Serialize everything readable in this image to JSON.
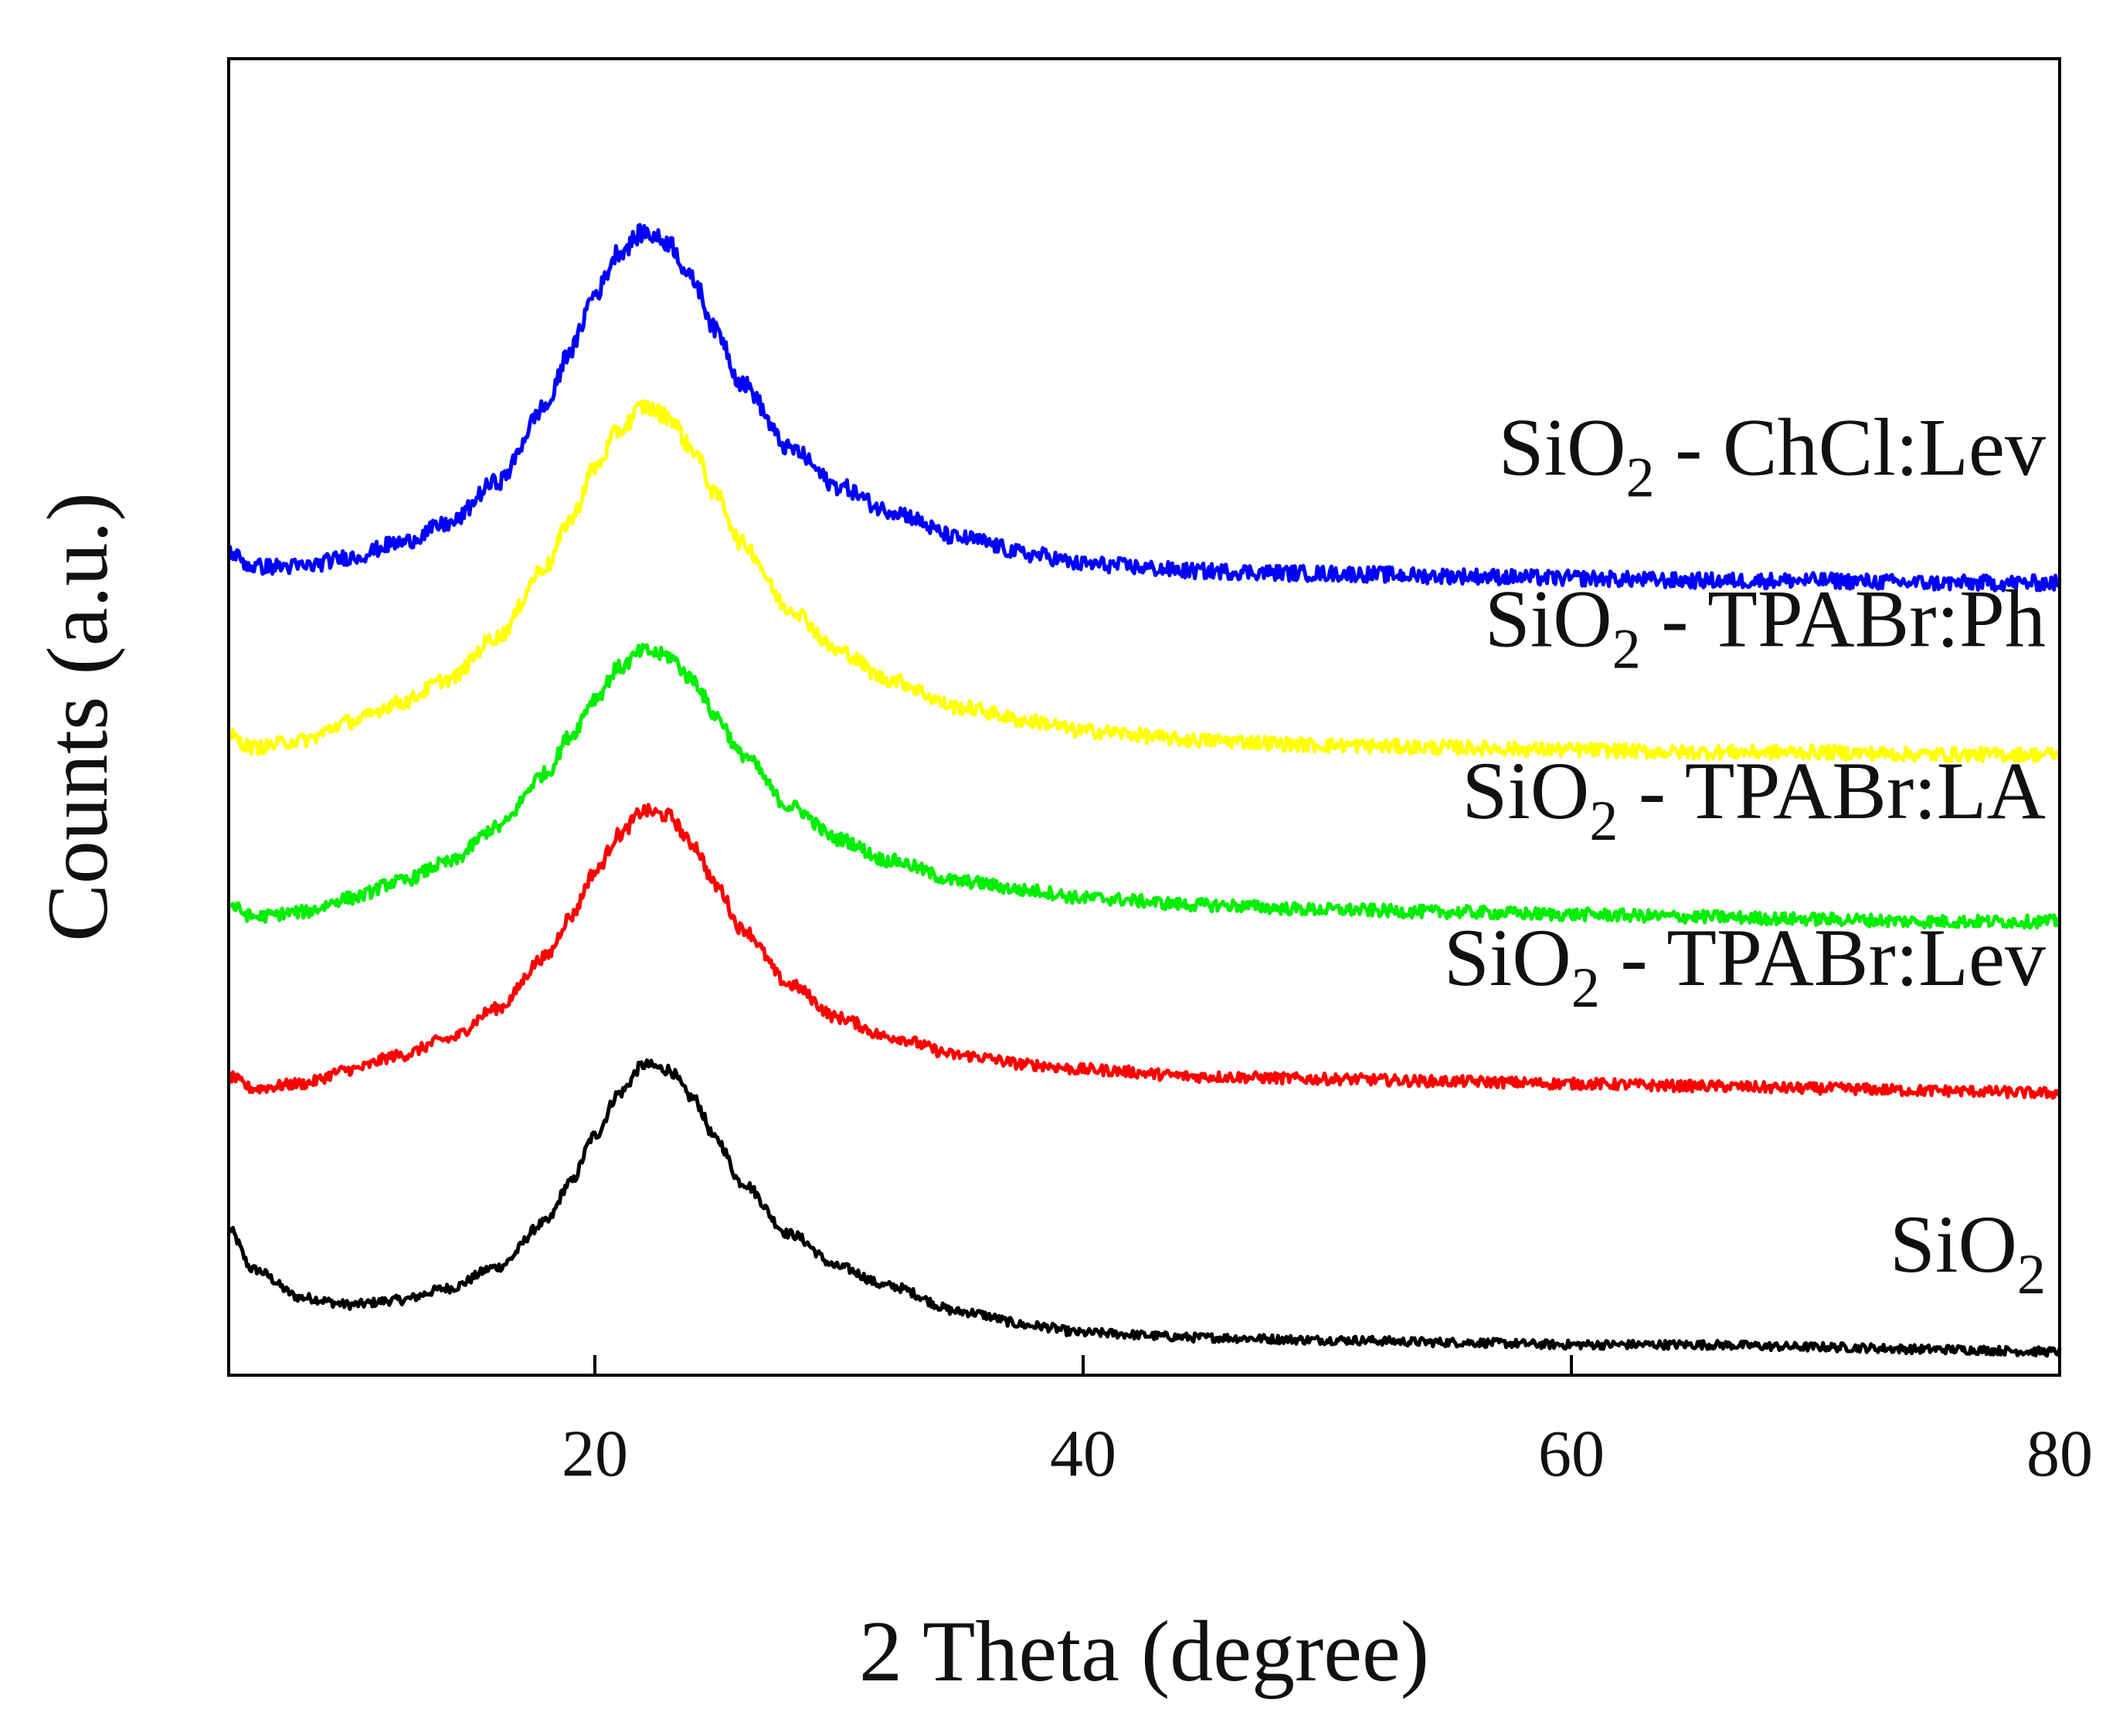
{
  "chart_data": {
    "type": "line",
    "title": "",
    "xlabel": "2 Theta (degree)",
    "ylabel": "Counts (a.u.)",
    "xlim": [
      5,
      80
    ],
    "ylim": [
      0,
      5.6
    ],
    "xticks": [
      20,
      40,
      60,
      80
    ],
    "xtick_labels": [
      "20",
      "40",
      "60",
      "80"
    ],
    "yticks_shown": false,
    "legend": "inline labels to the right of each trace",
    "series": [
      {
        "name": "SiO2",
        "label_main": "SiO",
        "label_sub": "2",
        "label_rest": "",
        "color": "#000000",
        "x": [
          5,
          6,
          8,
          10,
          12,
          14,
          16,
          18,
          19,
          20,
          21,
          22,
          23,
          24,
          25,
          26,
          28,
          30,
          32,
          35,
          38,
          40,
          45,
          50,
          55,
          60,
          65,
          70,
          75,
          80
        ],
        "y": [
          0.62,
          0.45,
          0.33,
          0.3,
          0.32,
          0.37,
          0.46,
          0.65,
          0.82,
          1.02,
          1.2,
          1.32,
          1.3,
          1.18,
          1.0,
          0.82,
          0.6,
          0.46,
          0.38,
          0.27,
          0.21,
          0.18,
          0.16,
          0.15,
          0.14,
          0.13,
          0.13,
          0.12,
          0.11,
          0.1
        ]
      },
      {
        "name": "SiO2 - TPABr:Lev",
        "label_main": "SiO",
        "label_sub": "2",
        "label_rest": " - TPABr:Lev",
        "color": "#ff0000",
        "x": [
          5,
          6,
          8,
          10,
          12,
          14,
          16,
          18,
          19,
          20,
          21,
          22,
          23,
          24,
          25,
          26,
          28,
          30,
          32,
          35,
          38,
          40,
          45,
          50,
          55,
          60,
          65,
          70,
          75,
          80
        ],
        "y": [
          1.27,
          1.22,
          1.24,
          1.3,
          1.36,
          1.43,
          1.56,
          1.78,
          1.95,
          2.14,
          2.3,
          2.4,
          2.38,
          2.26,
          2.08,
          1.9,
          1.66,
          1.52,
          1.44,
          1.36,
          1.32,
          1.3,
          1.27,
          1.26,
          1.25,
          1.24,
          1.23,
          1.22,
          1.21,
          1.2
        ]
      },
      {
        "name": "SiO2 - TPABr:LA",
        "label_main": "SiO",
        "label_sub": "2",
        "label_rest": " - TPABr:LA",
        "color": "#00ee00",
        "x": [
          5,
          6,
          8,
          10,
          12,
          14,
          16,
          18,
          19,
          20,
          21,
          22,
          23,
          24,
          25,
          26,
          28,
          30,
          32,
          35,
          38,
          40,
          45,
          50,
          55,
          60,
          65,
          70,
          75,
          80
        ],
        "y": [
          2.0,
          1.95,
          1.97,
          2.03,
          2.1,
          2.18,
          2.33,
          2.56,
          2.72,
          2.88,
          3.01,
          3.08,
          3.06,
          2.96,
          2.8,
          2.64,
          2.42,
          2.28,
          2.19,
          2.1,
          2.06,
          2.03,
          2.0,
          1.98,
          1.97,
          1.96,
          1.95,
          1.94,
          1.93,
          1.93
        ]
      },
      {
        "name": "SiO2 - TPABr:Ph",
        "label_main": "SiO",
        "label_sub": "2",
        "label_rest": " - TPABr:Ph",
        "color": "#ffff00",
        "x": [
          5,
          6,
          8,
          10,
          12,
          14,
          16,
          18,
          19,
          20,
          21,
          22,
          23,
          24,
          25,
          26,
          28,
          30,
          32,
          35,
          38,
          40,
          45,
          50,
          55,
          60,
          65,
          70,
          75,
          80
        ],
        "y": [
          2.72,
          2.67,
          2.7,
          2.78,
          2.86,
          2.96,
          3.14,
          3.44,
          3.64,
          3.86,
          4.02,
          4.12,
          4.08,
          3.94,
          3.74,
          3.54,
          3.26,
          3.08,
          2.96,
          2.84,
          2.78,
          2.74,
          2.7,
          2.68,
          2.67,
          2.66,
          2.65,
          2.65,
          2.64,
          2.64
        ]
      },
      {
        "name": "SiO2 - ChCl:Lev",
        "label_main": "SiO",
        "label_sub": "2",
        "label_rest": " - ChCl:Lev",
        "color": "#0000ff",
        "x": [
          5,
          6,
          8,
          10,
          12,
          14,
          16,
          18,
          19,
          20,
          21,
          22,
          23,
          24,
          25,
          26,
          28,
          30,
          32,
          35,
          38,
          40,
          45,
          50,
          55,
          60,
          65,
          70,
          75,
          80
        ],
        "y": [
          3.5,
          3.44,
          3.44,
          3.48,
          3.54,
          3.62,
          3.8,
          4.12,
          4.36,
          4.6,
          4.78,
          4.86,
          4.82,
          4.66,
          4.44,
          4.22,
          3.94,
          3.78,
          3.68,
          3.56,
          3.49,
          3.45,
          3.42,
          3.41,
          3.4,
          3.39,
          3.38,
          3.38,
          3.37,
          3.37
        ]
      }
    ]
  }
}
